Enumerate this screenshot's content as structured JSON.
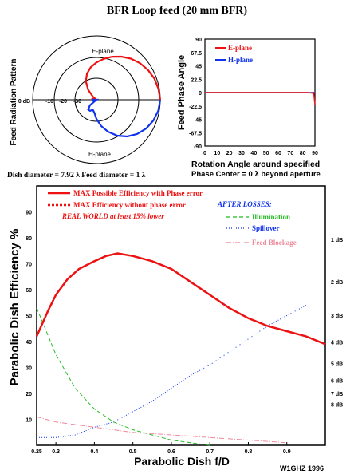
{
  "title": "BFR Loop feed (20 mm BFR)",
  "caption_left": "Dish diameter = 7.92 λ  Feed diameter = 1 λ",
  "signature": "W1GHZ 1996",
  "colors": {
    "red": "#ee1111",
    "blue": "#1133ee",
    "green": "#22bb22",
    "pink": "#ee8899"
  },
  "chart_data": [
    {
      "type": "polar",
      "ylabel": "Feed Radiation Pattern",
      "rings": [
        "0 dB",
        "-10",
        "-20",
        "-30"
      ],
      "labels": {
        "top": "E-plane",
        "bottom": "H-plane"
      },
      "series": [
        {
          "name": "E-plane",
          "color": "#ee1111",
          "angle_deg": [
            0,
            10,
            20,
            30,
            40,
            50,
            60,
            70,
            80,
            90,
            100,
            110,
            120,
            130,
            140,
            150,
            160,
            170,
            180
          ],
          "db": [
            0,
            -0.4,
            -1,
            -2,
            -3.3,
            -4.8,
            -6.6,
            -8.5,
            -10.5,
            -12.5,
            -14.5,
            -17,
            -20,
            -24,
            -28,
            -30,
            -29,
            -28,
            -28
          ]
        },
        {
          "name": "H-plane",
          "color": "#1133ee",
          "angle_deg": [
            0,
            10,
            20,
            30,
            40,
            50,
            60,
            70,
            80,
            90,
            100,
            110,
            120,
            130,
            140,
            150,
            160,
            170,
            180
          ],
          "db": [
            0,
            -0.5,
            -1.5,
            -3,
            -5,
            -7.5,
            -10.5,
            -14,
            -17.5,
            -21,
            -24,
            -25,
            -24,
            -24,
            -26,
            -30,
            -33,
            -30,
            -28
          ]
        }
      ]
    },
    {
      "type": "line",
      "ylabel": "Feed Phase Angle",
      "xlabel": "Rotation Angle around specified",
      "xlabel2": "Phase Center = 0 λ beyond aperture",
      "xlim": [
        0,
        90
      ],
      "ylim": [
        -90,
        90
      ],
      "xticks": [
        "0",
        "10",
        "20",
        "30",
        "40",
        "50",
        "60",
        "70",
        "80",
        "90"
      ],
      "yticks": [
        "90",
        "67.5",
        "45",
        "22.5",
        "0",
        "-22.5",
        "-45",
        "-67.5",
        "-90"
      ],
      "series": [
        {
          "name": "E-plane",
          "color": "#ee1111",
          "x": [
            0,
            10,
            20,
            30,
            40,
            50,
            60,
            70,
            80,
            85,
            88,
            89,
            90
          ],
          "y": [
            0,
            0,
            0,
            0,
            0,
            0,
            0,
            0,
            0,
            0,
            -1,
            0,
            -20
          ]
        },
        {
          "name": "H-plane",
          "color": "#1133ee",
          "x": [
            0,
            10,
            20,
            30,
            40,
            50,
            60,
            70,
            80,
            90
          ],
          "y": [
            0,
            0,
            0,
            0,
            0,
            0,
            0,
            0,
            0,
            0
          ]
        }
      ]
    },
    {
      "type": "line",
      "ylabel": "Parabolic Dish Efficiency %",
      "xlabel": "Parabolic Dish f/D",
      "xlim": [
        0.25,
        1.0
      ],
      "ylim": [
        0,
        100
      ],
      "xticks": [
        "0.25",
        "0.3",
        "0.4",
        "0.5",
        "0.6",
        "0.7",
        "0.8",
        "0.9"
      ],
      "yticks": [
        "90",
        "80",
        "70",
        "60",
        "50",
        "40",
        "30",
        "20",
        "10"
      ],
      "db_ticks": [
        {
          "label": "1 dB",
          "value": 79.4
        },
        {
          "label": "2 dB",
          "value": 63.1
        },
        {
          "label": "3 dB",
          "value": 50.1
        },
        {
          "label": "4 dB",
          "value": 39.8
        },
        {
          "label": "5 dB",
          "value": 31.6
        },
        {
          "label": "6 dB",
          "value": 25.1
        },
        {
          "label": "7 dB",
          "value": 20.0
        },
        {
          "label": "8 dB",
          "value": 15.8
        }
      ],
      "legend": {
        "max_phase": "MAX Possible Efficiency with Phase error",
        "max_nophase": "MAX Efficiency without phase error",
        "real_world": "REAL WORLD at least 15% lower",
        "after_losses": "AFTER LOSSES:",
        "illumination": "Illumination",
        "spillover": "Spillover",
        "blockage": "Feed Blockage"
      },
      "series": [
        {
          "name": "MAX Possible Efficiency with Phase error",
          "color": "#ee1111",
          "x": [
            0.25,
            0.28,
            0.3,
            0.33,
            0.36,
            0.4,
            0.43,
            0.46,
            0.5,
            0.55,
            0.6,
            0.65,
            0.7,
            0.75,
            0.8,
            0.85,
            0.9,
            0.95,
            1.0
          ],
          "y": [
            42,
            52,
            58,
            64,
            68,
            71,
            73,
            74,
            73,
            71,
            68,
            63,
            58,
            53,
            49,
            46,
            44,
            42,
            39
          ]
        },
        {
          "name": "Illumination",
          "color": "#22bb22",
          "x": [
            0.25,
            0.3,
            0.35,
            0.4,
            0.45,
            0.5,
            0.55,
            0.6,
            0.65,
            0.7
          ],
          "y": [
            53,
            35,
            22,
            14,
            9,
            6,
            4,
            2,
            1,
            0
          ]
        },
        {
          "name": "Spillover",
          "color": "#1133ee",
          "x": [
            0.25,
            0.3,
            0.35,
            0.4,
            0.45,
            0.5,
            0.55,
            0.6,
            0.65,
            0.7,
            0.75,
            0.8,
            0.85,
            0.9,
            0.95
          ],
          "y": [
            3,
            3,
            4,
            7,
            9,
            13,
            17,
            22,
            27,
            31,
            36,
            41,
            46,
            50,
            54
          ]
        },
        {
          "name": "Feed Blockage",
          "color": "#ee8899",
          "x": [
            0.25,
            0.3,
            0.4,
            0.5,
            0.6,
            0.7,
            0.8,
            0.9
          ],
          "y": [
            11,
            9,
            7,
            5,
            4,
            3,
            2,
            1
          ]
        }
      ]
    }
  ]
}
